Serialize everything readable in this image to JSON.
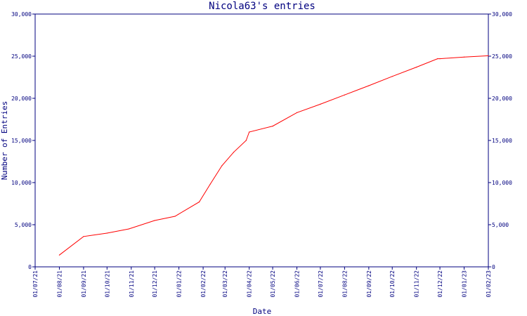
{
  "colors": {
    "axis": "#00007f",
    "text": "#00007f",
    "series": "#ff0000",
    "background": "#ffffff"
  },
  "chart_data": {
    "type": "line",
    "title": "Nicola63's entries",
    "xlabel": "Date",
    "ylabel": "Number of Entries",
    "grid": false,
    "legend": "none",
    "ylim": [
      0,
      30000
    ],
    "y_ticks": [
      0,
      5000,
      10000,
      15000,
      20000,
      25000,
      30000
    ],
    "y_tick_labels": [
      "0",
      "5,000",
      "10,000",
      "15,000",
      "20,000",
      "25,000",
      "30,000"
    ],
    "x_range": [
      "2021-07-01",
      "2023-02-01"
    ],
    "x_ticks": [
      {
        "date": "2021-07-01",
        "label": "01/07/21"
      },
      {
        "date": "2021-08-01",
        "label": "01/08/21"
      },
      {
        "date": "2021-09-01",
        "label": "01/09/21"
      },
      {
        "date": "2021-10-01",
        "label": "01/10/21"
      },
      {
        "date": "2021-11-01",
        "label": "01/11/21"
      },
      {
        "date": "2021-12-01",
        "label": "01/12/21"
      },
      {
        "date": "2022-01-01",
        "label": "01/01/22"
      },
      {
        "date": "2022-02-01",
        "label": "01/02/22"
      },
      {
        "date": "2022-03-01",
        "label": "01/03/22"
      },
      {
        "date": "2022-04-01",
        "label": "01/04/22"
      },
      {
        "date": "2022-05-01",
        "label": "01/05/22"
      },
      {
        "date": "2022-06-01",
        "label": "01/06/22"
      },
      {
        "date": "2022-07-01",
        "label": "01/07/22"
      },
      {
        "date": "2022-08-01",
        "label": "01/08/22"
      },
      {
        "date": "2022-09-01",
        "label": "01/09/22"
      },
      {
        "date": "2022-10-01",
        "label": "01/10/22"
      },
      {
        "date": "2022-11-01",
        "label": "01/11/22"
      },
      {
        "date": "2022-12-01",
        "label": "01/12/22"
      },
      {
        "date": "2023-01-01",
        "label": "01/01/23"
      },
      {
        "date": "2023-02-01",
        "label": "01/02/23"
      }
    ],
    "series": [
      {
        "points": [
          {
            "x": "2021-08-01",
            "y": 1400
          },
          {
            "x": "2021-09-01",
            "y": 3600
          },
          {
            "x": "2021-10-01",
            "y": 4000
          },
          {
            "x": "2021-10-29",
            "y": 4500
          },
          {
            "x": "2021-12-01",
            "y": 5500
          },
          {
            "x": "2021-12-27",
            "y": 6000
          },
          {
            "x": "2022-01-27",
            "y": 7700
          },
          {
            "x": "2022-02-10",
            "y": 9800
          },
          {
            "x": "2022-02-25",
            "y": 12000
          },
          {
            "x": "2022-03-12",
            "y": 13600
          },
          {
            "x": "2022-03-28",
            "y": 15000
          },
          {
            "x": "2022-04-01",
            "y": 16000
          },
          {
            "x": "2022-05-01",
            "y": 16700
          },
          {
            "x": "2022-06-01",
            "y": 18300
          },
          {
            "x": "2022-07-01",
            "y": 19300
          },
          {
            "x": "2022-08-01",
            "y": 20400
          },
          {
            "x": "2022-09-01",
            "y": 21500
          },
          {
            "x": "2022-10-01",
            "y": 22600
          },
          {
            "x": "2022-11-01",
            "y": 23700
          },
          {
            "x": "2022-11-28",
            "y": 24700
          },
          {
            "x": "2022-12-01",
            "y": 24700
          },
          {
            "x": "2023-01-01",
            "y": 24900
          },
          {
            "x": "2023-02-01",
            "y": 25050
          }
        ]
      }
    ]
  }
}
